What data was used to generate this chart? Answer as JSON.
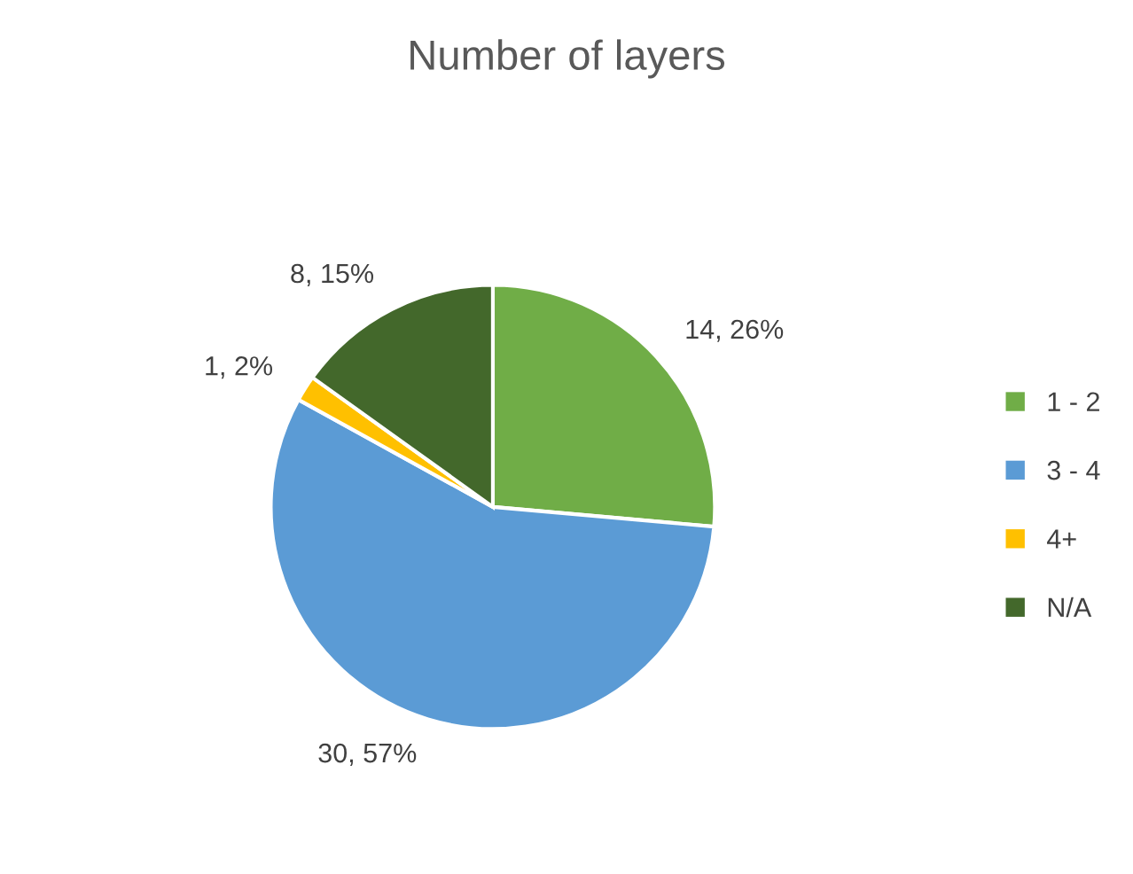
{
  "chart_data": {
    "type": "pie",
    "title": "Number of layers",
    "categories": [
      "1 - 2",
      "3 - 4",
      "4+",
      "N/A"
    ],
    "values": [
      14,
      30,
      1,
      8
    ],
    "colors": [
      "#70ad47",
      "#5b9bd5",
      "#ffc000",
      "#43682b"
    ],
    "value_labels": [
      "14, 26%",
      "30, 57%",
      "1, 2%",
      "8, 15%"
    ],
    "legend": "right"
  }
}
